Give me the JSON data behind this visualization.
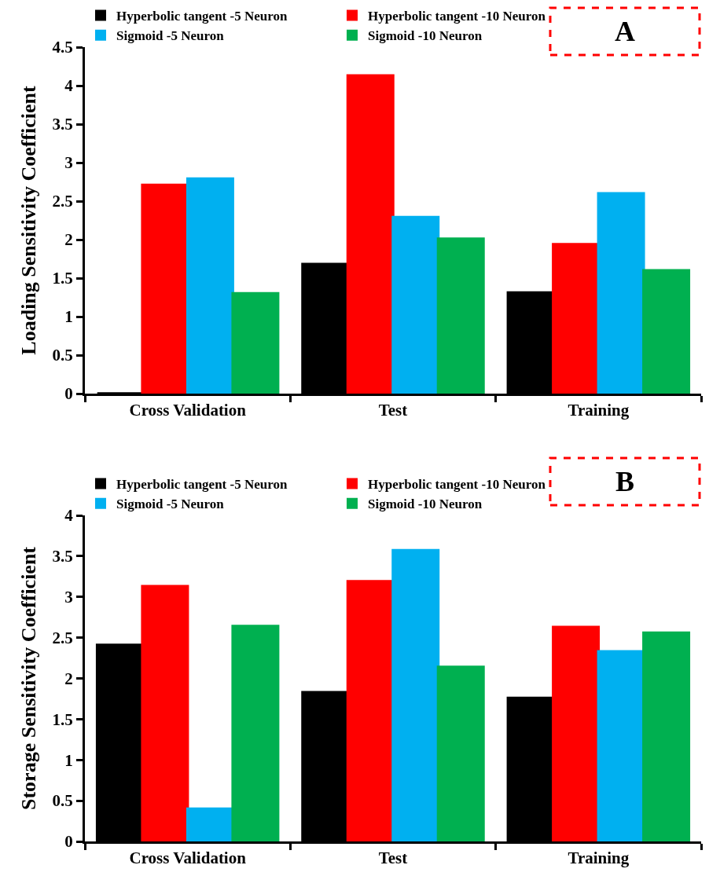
{
  "chart_data": [
    {
      "type": "bar",
      "ylabel": "Loading Sensitivity Coefficient",
      "categories": [
        "Cross Validation",
        "Test",
        "Training"
      ],
      "series": [
        {
          "name": "Hyperbolic tangent -5 Neuron",
          "color": "#000000",
          "values": [
            0,
            1.68,
            1.31
          ]
        },
        {
          "name": "Hyperbolic tangent -10 Neuron",
          "color": "#ff0000",
          "values": [
            2.71,
            4.13,
            1.94
          ]
        },
        {
          "name": "Sigmoid -5 Neuron",
          "color": "#00b0f0",
          "values": [
            2.79,
            2.29,
            2.6
          ]
        },
        {
          "name": "Sigmoid -10 Neuron",
          "color": "#00b050",
          "values": [
            1.3,
            2.01,
            1.6
          ]
        }
      ],
      "ylim": [
        0,
        4.5
      ],
      "yticks": [
        0,
        0.5,
        1,
        1.5,
        2,
        2.5,
        3,
        3.5,
        4,
        4.5
      ],
      "legend": "top left",
      "annotations": [
        "A"
      ]
    },
    {
      "type": "bar",
      "ylabel": "Storage Sensitivity Coefficient",
      "categories": [
        "Cross Validation",
        "Test",
        "Training"
      ],
      "series": [
        {
          "name": "Hyperbolic tangent -5 Neuron",
          "color": "#000000",
          "values": [
            2.41,
            1.83,
            1.76
          ]
        },
        {
          "name": "Hyperbolic tangent -10 Neuron",
          "color": "#ff0000",
          "values": [
            3.13,
            3.19,
            2.63
          ]
        },
        {
          "name": "Sigmoid -5 Neuron",
          "color": "#00b0f0",
          "values": [
            0.4,
            3.57,
            2.33
          ]
        },
        {
          "name": "Sigmoid -10 Neuron",
          "color": "#00b050",
          "values": [
            2.64,
            2.14,
            2.56
          ]
        }
      ],
      "ylim": [
        0,
        4
      ],
      "yticks": [
        0,
        0.5,
        1,
        1.5,
        2,
        2.5,
        3,
        3.5,
        4
      ],
      "legend": "top left",
      "annotations": [
        "B"
      ]
    }
  ]
}
